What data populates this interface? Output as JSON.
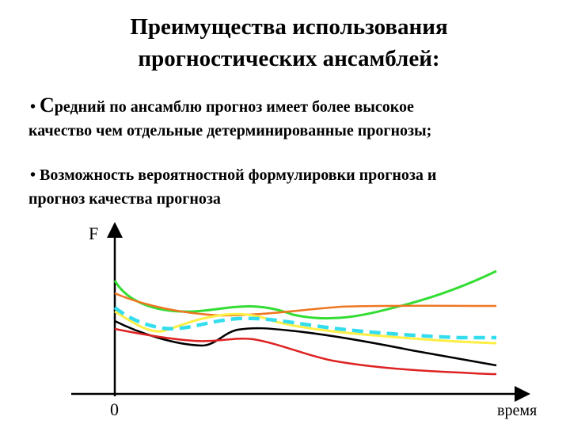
{
  "title": {
    "line1": "Преимущества использования",
    "line2": "прогностических ансамблей:"
  },
  "bullets": [
    {
      "marker": "•",
      "first_letter": "С",
      "rest_line1": "редний по ансамблю прогноз имеет более высокое",
      "line2": "качество чем отдельные детерминированные прогнозы;"
    },
    {
      "marker": "•",
      "line1": " Возможность вероятностной формулировки прогноза и",
      "line2": "прогноз качества прогноза"
    }
  ],
  "chart": {
    "y_label": "F",
    "origin_label": "0",
    "x_label": "время",
    "colors": {
      "green": "#33dd33",
      "orange": "#ee7722",
      "cyan": "#33ddee",
      "yellow": "#ffee44",
      "black": "#000000",
      "red": "#dd2222"
    }
  }
}
